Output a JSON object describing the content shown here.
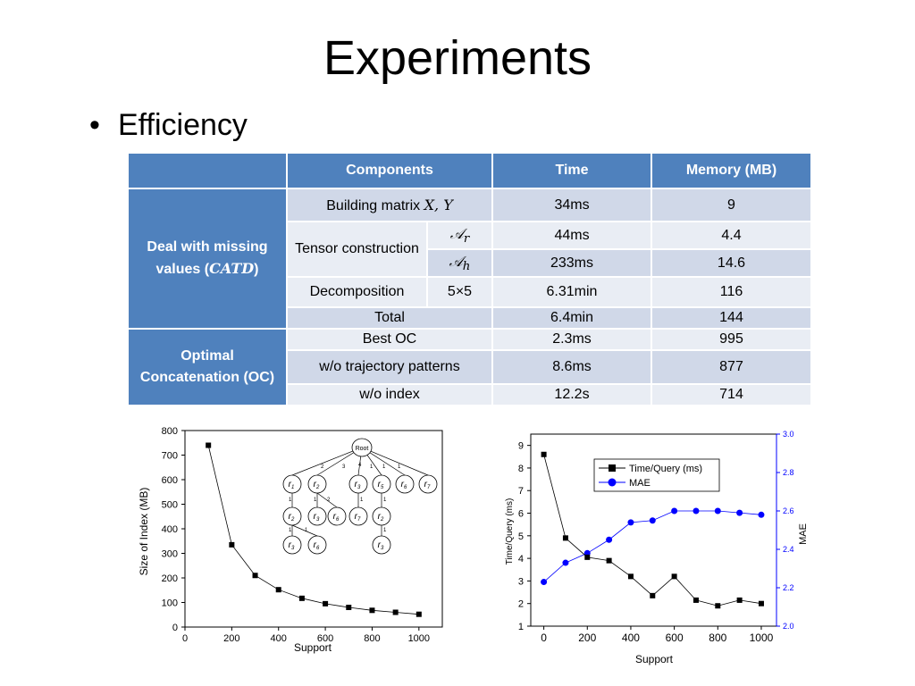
{
  "slide": {
    "title": "Experiments",
    "bullet": "Efficiency"
  },
  "table": {
    "headers": [
      "",
      "Components",
      "Time",
      "Memory (MB)"
    ],
    "group1_label": "Deal with missing values (",
    "group1_symbol": "CATD",
    "group1_close": ")",
    "group2_label": "Optimal Concatenation (OC)",
    "row_building": {
      "label": "Building matrix ",
      "symbol": "X, Y",
      "time": "34ms",
      "memory": "9"
    },
    "tensor_label": "Tensor construction",
    "row_ar": {
      "symbol": "𝒜",
      "sub": "r",
      "time": "44ms",
      "memory": "4.4"
    },
    "row_ah": {
      "symbol": "𝒜",
      "sub": "h",
      "time": "233ms",
      "memory": "14.6"
    },
    "row_decomp": {
      "label": "Decomposition",
      "size": "5×5",
      "time": "6.31min",
      "memory": "116"
    },
    "row_total": {
      "label": "Total",
      "time": "6.4min",
      "memory": "144"
    },
    "row_best": {
      "label": "Best OC",
      "time": "2.3ms",
      "memory": "995"
    },
    "row_notraj": {
      "label": "w/o trajectory patterns",
      "time": "8.6ms",
      "memory": "877"
    },
    "row_noindex": {
      "label": "w/o index",
      "time": "12.2s",
      "memory": "714"
    }
  },
  "chart_data": [
    {
      "type": "line",
      "xlabel": "Support",
      "ylabel": "Size of Index (MB)",
      "xlim": [
        0,
        1100
      ],
      "ylim": [
        0,
        800
      ],
      "xticks": [
        0,
        200,
        400,
        600,
        800,
        1000
      ],
      "yticks": [
        0,
        100,
        200,
        300,
        400,
        500,
        600,
        700,
        800
      ],
      "x": [
        100,
        200,
        300,
        400,
        500,
        600,
        700,
        800,
        900,
        1000
      ],
      "series": [
        {
          "values": [
            740,
            335,
            210,
            152,
            117,
            95,
            80,
            68,
            60,
            52
          ],
          "color": "#000000",
          "marker": "square"
        }
      ]
    },
    {
      "type": "line",
      "xlabel": "Support",
      "ylabel": "Time/Query (ms)",
      "y2label": "MAE",
      "xlim": [
        -60,
        1070
      ],
      "ylim": [
        1,
        9.5
      ],
      "y2lim": [
        2.0,
        3.0
      ],
      "xticks": [
        0,
        200,
        400,
        600,
        800,
        1000
      ],
      "yticks": [
        1,
        2,
        3,
        4,
        5,
        6,
        7,
        8,
        9
      ],
      "y2ticks": [
        "2.0",
        "2.2",
        "2.4",
        "2.6",
        "2.8",
        "3.0"
      ],
      "x": [
        0,
        100,
        200,
        300,
        400,
        500,
        600,
        700,
        800,
        900,
        1000
      ],
      "legend_position": "top-right",
      "series": [
        {
          "name": "Time/Query (ms)",
          "axis": "left",
          "color": "#000000",
          "marker": "square",
          "values": [
            8.6,
            4.9,
            4.05,
            3.9,
            3.2,
            2.35,
            3.2,
            2.15,
            1.9,
            2.15,
            2.0
          ]
        },
        {
          "name": "MAE",
          "axis": "right",
          "color": "#0000ff",
          "marker": "circle",
          "values": [
            2.23,
            2.33,
            2.38,
            2.45,
            2.54,
            2.55,
            2.6,
            2.6,
            2.6,
            2.59,
            2.58
          ]
        }
      ]
    }
  ],
  "tree": {
    "root": "Root",
    "edge_labels": [
      "2",
      "3",
      "4",
      "1",
      "1",
      "1"
    ],
    "sub_labels": [
      "1",
      "1",
      "2",
      "1",
      "1",
      "1",
      "1",
      "1"
    ]
  },
  "colors": {
    "header_blue": "#4f81bd",
    "row_dark": "#d0d8e8",
    "row_light": "#e9edf4",
    "mae_blue": "#0000ff"
  }
}
